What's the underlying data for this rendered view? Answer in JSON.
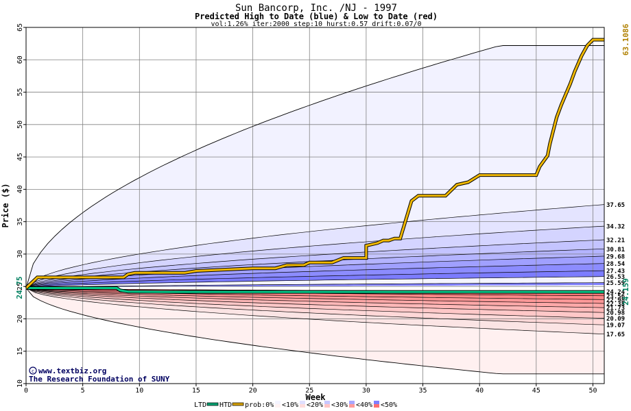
{
  "chart_data": {
    "type": "area",
    "title": "Sun Bancorp, Inc. /NJ - 1997",
    "subtitle": "Predicted High to Date (blue) &  Low to Date (red)",
    "params": "vol:1.26% iter:2000 step:10 hurst:0.57 drift:0.07/0",
    "xlabel": "Week",
    "ylabel": "Price ($)",
    "xlim": [
      0,
      51
    ],
    "ylim": [
      10,
      65
    ],
    "x_ticks": [
      0,
      5,
      10,
      15,
      20,
      25,
      30,
      35,
      40,
      45,
      50
    ],
    "y_ticks": [
      10,
      15,
      20,
      25,
      30,
      35,
      40,
      45,
      50,
      55,
      60,
      65
    ],
    "grid": true,
    "start_value": 24.75,
    "start_label": "24.75",
    "end_htd": 63.1086,
    "end_htd_label": "63.1086",
    "end_ltd": 24.159,
    "end_ltd_label": "24.159",
    "upper_bounds": [
      {
        "label": "37.65",
        "value": 37.65
      },
      {
        "label": "34.32",
        "value": 34.32
      },
      {
        "label": "32.21",
        "value": 32.21
      },
      {
        "label": "30.81",
        "value": 30.81
      },
      {
        "label": "29.68",
        "value": 29.68
      },
      {
        "label": "28.54",
        "value": 28.54
      },
      {
        "label": "27.43",
        "value": 27.43
      },
      {
        "label": "26.53",
        "value": 26.53
      },
      {
        "label": "25.59",
        "value": 25.59
      }
    ],
    "lower_bounds": [
      {
        "label": "24.24",
        "value": 24.24
      },
      {
        "label": "23.56",
        "value": 23.56
      },
      {
        "label": "22.98",
        "value": 22.98
      },
      {
        "label": "22.38",
        "value": 22.38
      },
      {
        "label": "21.73",
        "value": 21.73
      },
      {
        "label": "20.98",
        "value": 20.98
      },
      {
        "label": "20.09",
        "value": 20.09
      },
      {
        "label": "19.07",
        "value": 19.07
      },
      {
        "label": "17.65",
        "value": 17.65
      }
    ],
    "outer_high_end": 62.2,
    "outer_low_end": 11.5,
    "htd_series": {
      "name": "HTD",
      "x": [
        0,
        1,
        3,
        5,
        7,
        8.6,
        9,
        9.6,
        12,
        14,
        15,
        20,
        22,
        23,
        24.5,
        25,
        27,
        28,
        30,
        30,
        31,
        31.5,
        32,
        32.5,
        33,
        34,
        34.6,
        35,
        37,
        38,
        39,
        40,
        45,
        45.3,
        46,
        46.2,
        46.8,
        47.2,
        48,
        48.4,
        49,
        49.5,
        50,
        51
      ],
      "y": [
        24.75,
        26.4,
        26.4,
        26.4,
        26.4,
        26.4,
        26.9,
        27.1,
        27.1,
        27.1,
        27.4,
        27.8,
        27.8,
        28.3,
        28.3,
        28.7,
        28.7,
        29.4,
        29.4,
        31.3,
        31.7,
        32.1,
        32.1,
        32.4,
        32.4,
        38.2,
        39.0,
        39.0,
        39.0,
        40.7,
        41.1,
        42.2,
        42.2,
        43.5,
        45.2,
        47.0,
        51.1,
        53.0,
        56.3,
        58.2,
        60.6,
        62.2,
        63.1,
        63.1
      ]
    },
    "ltd_series": {
      "name": "LTD",
      "x": [
        0,
        2,
        4,
        8,
        8.3,
        9,
        12,
        20,
        30,
        40,
        51
      ],
      "y": [
        24.75,
        24.75,
        24.75,
        24.75,
        24.4,
        24.2,
        24.159,
        24.159,
        24.159,
        24.159,
        24.159
      ]
    },
    "legend": {
      "placement": "bottom",
      "items": [
        {
          "label": "LTD",
          "color": "#00a070",
          "kind": "line"
        },
        {
          "label": "HTD",
          "color": "#d4a000",
          "kind": "line"
        },
        {
          "label": "prob:0%",
          "color": "#ffffff",
          "kind": "text"
        },
        {
          "label": "<10%",
          "color": "#f4f4ff",
          "color2": "#fff2f2",
          "kind": "swatch"
        },
        {
          "label": "<20%",
          "color": "#e0e0ff",
          "color2": "#ffdcdc",
          "kind": "swatch"
        },
        {
          "label": "<30%",
          "color": "#c8c8ff",
          "color2": "#ffc4c4",
          "kind": "swatch"
        },
        {
          "label": "<40%",
          "color": "#a8a8ff",
          "color2": "#ff9c9c",
          "kind": "swatch"
        },
        {
          "label": "<50%",
          "color": "#8080ff",
          "color2": "#ff7070",
          "kind": "swatch"
        }
      ]
    },
    "watermark_line1": "www.textbiz.org",
    "watermark_line2": "The Research Foundation of SUNY"
  }
}
